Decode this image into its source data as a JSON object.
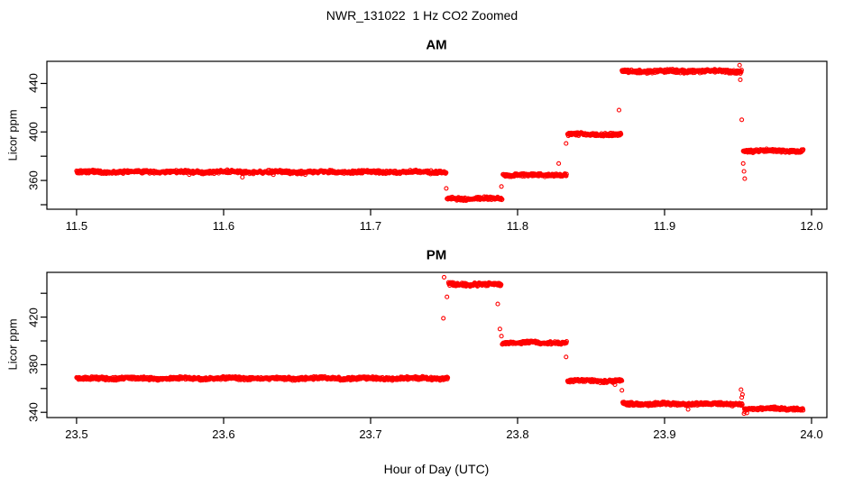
{
  "title": "NWR_131022  1 Hz CO2 Zoomed",
  "colors": {
    "points": "#FF0000",
    "axis": "#000000",
    "background": "#FFFFFF"
  },
  "chart_data": [
    {
      "type": "scatter",
      "title": "AM",
      "xlabel": "",
      "ylabel": "Licor ppm",
      "marker": "open-circle",
      "color": "#FF0000",
      "sample_rate_hz": 1,
      "xlim": [
        11.4798,
        12.0104
      ],
      "ylim": [
        336.3,
        458.2
      ],
      "xticks": [
        {
          "v": 11.5,
          "label": "11.5"
        },
        {
          "v": 11.6,
          "label": "11.6"
        },
        {
          "v": 11.7,
          "label": "11.7"
        },
        {
          "v": 11.8,
          "label": "11.8"
        },
        {
          "v": 11.9,
          "label": "11.9"
        },
        {
          "v": 12.0,
          "label": "12.0"
        }
      ],
      "yticks": [
        {
          "v": 340,
          "label": ""
        },
        {
          "v": 360,
          "label": "360"
        },
        {
          "v": 380,
          "label": ""
        },
        {
          "v": 400,
          "label": "400"
        },
        {
          "v": 420,
          "label": ""
        },
        {
          "v": 440,
          "label": "440"
        }
      ],
      "segments": [
        {
          "x_start": 11.5,
          "x_end": 11.7515,
          "y": 367.0,
          "noise": 0.9
        },
        {
          "x_start": 11.752,
          "x_end": 11.7895,
          "y": 345.0,
          "noise": 0.9
        },
        {
          "x_start": 11.79,
          "x_end": 11.8335,
          "y": 364.5,
          "noise": 0.9
        },
        {
          "x_start": 11.834,
          "x_end": 11.8705,
          "y": 398.0,
          "noise": 0.9
        },
        {
          "x_start": 11.871,
          "x_end": 11.9525,
          "y": 450.0,
          "noise": 1.0
        },
        {
          "x_start": 11.9535,
          "x_end": 11.9945,
          "y": 384.5,
          "noise": 0.9
        }
      ],
      "outliers": [
        [
          11.7515,
          353.5
        ],
        [
          11.789,
          355.0
        ],
        [
          11.828,
          374.0
        ],
        [
          11.833,
          390.5
        ],
        [
          11.869,
          418.0
        ],
        [
          11.951,
          455.0
        ],
        [
          11.9515,
          443.0
        ],
        [
          11.9525,
          410.0
        ],
        [
          11.9535,
          374.0
        ],
        [
          11.954,
          367.5
        ],
        [
          11.9545,
          361.5
        ]
      ]
    },
    {
      "type": "scatter",
      "title": "PM",
      "xlabel": "Hour of Day (UTC)",
      "ylabel": "Licor ppm",
      "marker": "open-circle",
      "color": "#FF0000",
      "sample_rate_hz": 1,
      "xlim": [
        23.4798,
        24.0104
      ],
      "ylim": [
        335.6,
        457.6
      ],
      "xticks": [
        {
          "v": 23.5,
          "label": "23.5"
        },
        {
          "v": 23.6,
          "label": "23.6"
        },
        {
          "v": 23.7,
          "label": "23.7"
        },
        {
          "v": 23.8,
          "label": "23.8"
        },
        {
          "v": 23.9,
          "label": "23.9"
        },
        {
          "v": 24.0,
          "label": "24.0"
        }
      ],
      "yticks": [
        {
          "v": 340,
          "label": "340"
        },
        {
          "v": 360,
          "label": ""
        },
        {
          "v": 380,
          "label": "380"
        },
        {
          "v": 400,
          "label": ""
        },
        {
          "v": 420,
          "label": "420"
        },
        {
          "v": 440,
          "label": ""
        }
      ],
      "segments": [
        {
          "x_start": 23.5,
          "x_end": 23.7525,
          "y": 368.5,
          "noise": 0.9
        },
        {
          "x_start": 23.753,
          "x_end": 23.789,
          "y": 447.5,
          "noise": 1.0
        },
        {
          "x_start": 23.7895,
          "x_end": 23.8335,
          "y": 398.5,
          "noise": 0.9
        },
        {
          "x_start": 23.834,
          "x_end": 23.871,
          "y": 366.5,
          "noise": 0.9
        },
        {
          "x_start": 23.8715,
          "x_end": 23.953,
          "y": 347.0,
          "noise": 0.9
        },
        {
          "x_start": 23.954,
          "x_end": 23.9945,
          "y": 343.0,
          "noise": 0.9
        }
      ],
      "outliers": [
        [
          23.7495,
          419.0
        ],
        [
          23.75,
          453.5
        ],
        [
          23.752,
          437.0
        ],
        [
          23.7865,
          431.0
        ],
        [
          23.788,
          410.0
        ],
        [
          23.789,
          404.0
        ],
        [
          23.833,
          386.5
        ],
        [
          23.871,
          358.5
        ],
        [
          23.916,
          342.5
        ],
        [
          23.952,
          359.0
        ],
        [
          23.9525,
          352.5
        ],
        [
          23.953,
          355.0
        ],
        [
          23.9545,
          340.5
        ],
        [
          23.956,
          339.5
        ]
      ]
    }
  ]
}
